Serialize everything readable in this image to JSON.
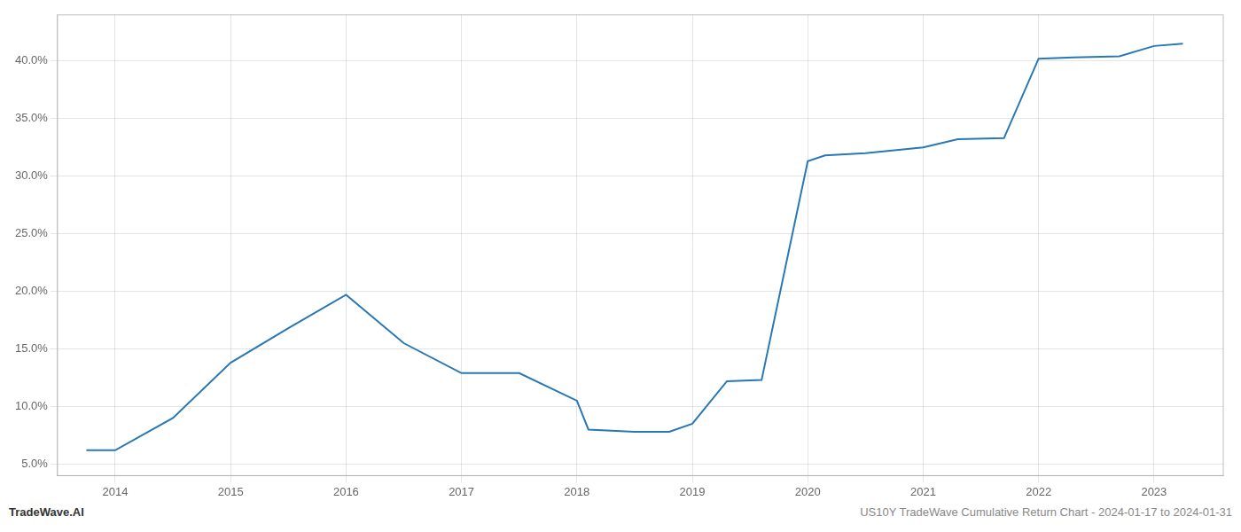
{
  "chart_data": {
    "type": "line",
    "x": [
      2013.75,
      2014.0,
      2014.5,
      2015.0,
      2015.5,
      2016.0,
      2016.5,
      2017.0,
      2017.3,
      2017.5,
      2018.0,
      2018.1,
      2018.5,
      2018.8,
      2019.0,
      2019.3,
      2019.6,
      2020.0,
      2020.15,
      2020.5,
      2021.0,
      2021.3,
      2021.7,
      2022.0,
      2022.3,
      2022.7,
      2023.0,
      2023.25
    ],
    "values": [
      6.2,
      6.2,
      9.0,
      13.8,
      16.8,
      19.7,
      15.5,
      12.9,
      12.9,
      12.9,
      10.5,
      8.0,
      7.8,
      7.8,
      8.5,
      12.2,
      12.3,
      31.3,
      31.8,
      32.0,
      32.5,
      33.2,
      33.3,
      40.2,
      40.3,
      40.4,
      41.3,
      41.5
    ],
    "color": "#2878b5",
    "xlim": [
      2013.5,
      2023.6
    ],
    "xticks": [
      2014,
      2015,
      2016,
      2017,
      2018,
      2019,
      2020,
      2021,
      2022,
      2023
    ],
    "ylim": [
      4.0,
      44.0
    ],
    "yticks": [
      {
        "value": 5.0,
        "label": "5.0%"
      },
      {
        "value": 10.0,
        "label": "10.0%"
      },
      {
        "value": 15.0,
        "label": "15.0%"
      },
      {
        "value": 20.0,
        "label": "20.0%"
      },
      {
        "value": 25.0,
        "label": "25.0%"
      },
      {
        "value": 30.0,
        "label": "30.0%"
      },
      {
        "value": 35.0,
        "label": "35.0%"
      },
      {
        "value": 40.0,
        "label": "40.0%"
      }
    ],
    "grid": true,
    "annotations": [
      "TradeWave.AI",
      "US10Y TradeWave Cumulative Return Chart - 2024-01-17 to 2024-01-31"
    ]
  }
}
